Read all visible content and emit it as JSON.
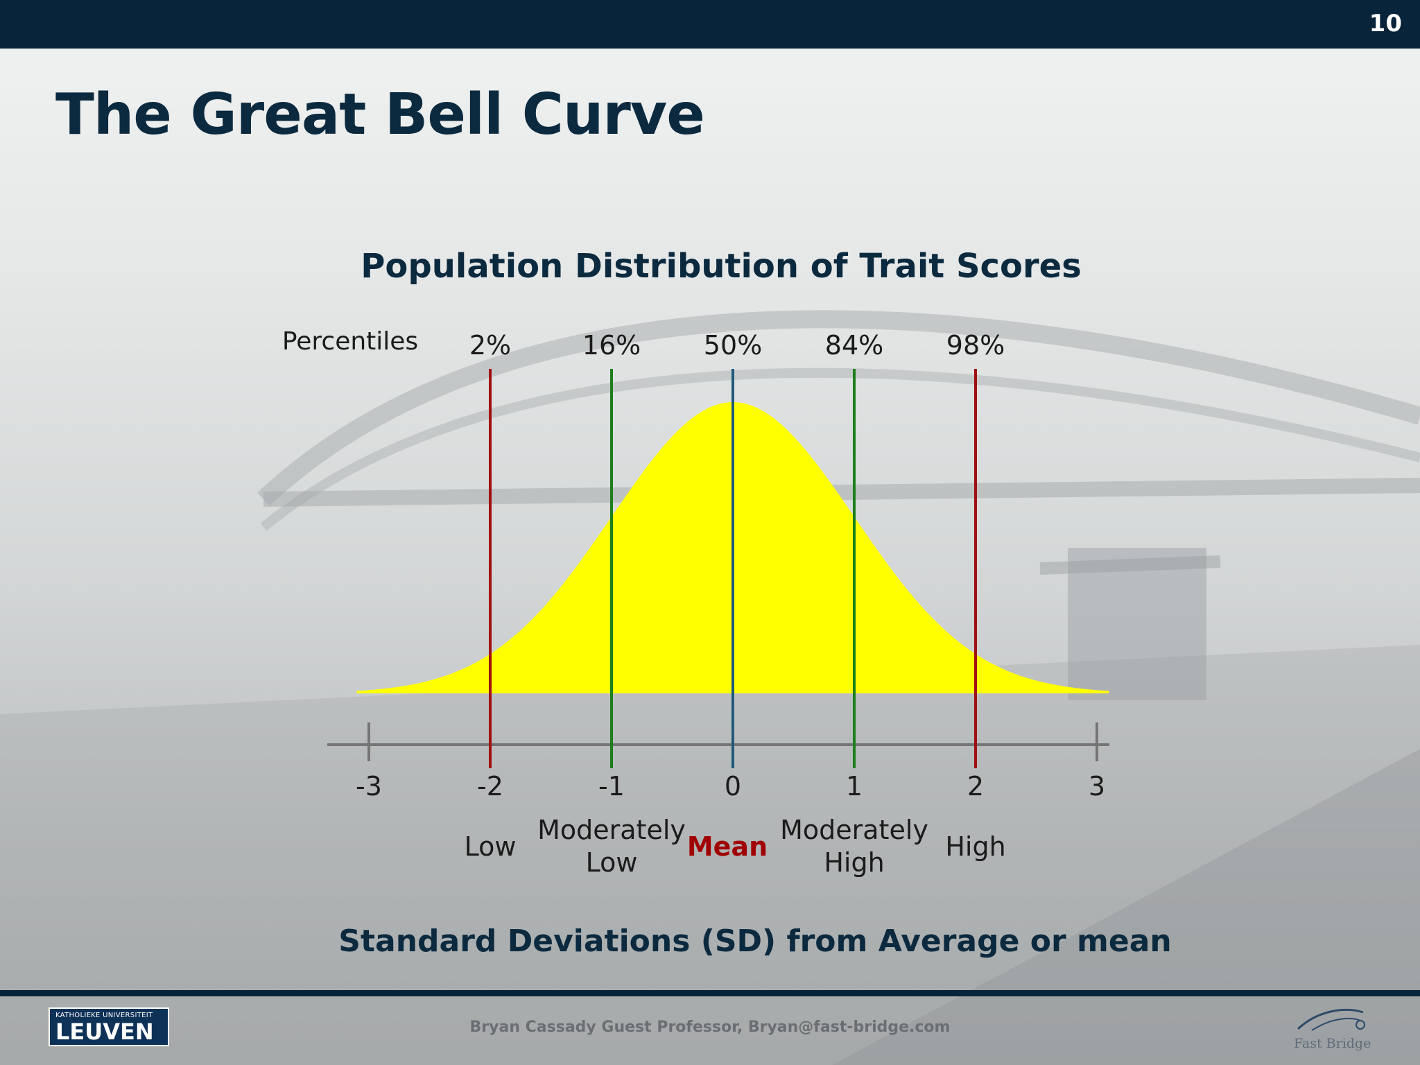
{
  "slide": {
    "number": "10",
    "title": "The Great Bell Curve",
    "footer": "Bryan Cassady Guest Professor, Bryan@fast-bridge.com",
    "logo_left_small": "KATHOLIEKE UNIVERSITEIT",
    "logo_left_big": "LEUVEN",
    "logo_right": "Fast Bridge"
  },
  "colors": {
    "bar": "#07243a",
    "title": "#0b2a3f",
    "curve_fill": "#ffff00",
    "line_dark_red": "#a01010",
    "line_green": "#1b7f1b",
    "line_blue": "#1f5a7a",
    "axis": "#757575",
    "mean_label": "#a00000"
  },
  "chart_data": {
    "type": "area",
    "title": "Population Distribution of Trait Scores",
    "xlabel": "Standard Deviations (SD) from Average or mean",
    "percentile_heading": "Percentiles",
    "xlim": [
      -3.1,
      3.1
    ],
    "ticks": [
      -3,
      -2,
      -1,
      0,
      1,
      2,
      3
    ],
    "tick_labels": [
      "-3",
      "-2",
      "-1",
      "0",
      "1",
      "2",
      "3"
    ],
    "curve": {
      "distribution": "normal",
      "mean": 0,
      "sd": 1
    },
    "markers": [
      {
        "x": -2,
        "percentile": "2%",
        "color": "#a01010"
      },
      {
        "x": -1,
        "percentile": "16%",
        "color": "#1b7f1b"
      },
      {
        "x": 0,
        "percentile": "50%",
        "color": "#1f5a7a"
      },
      {
        "x": 1,
        "percentile": "84%",
        "color": "#1b7f1b"
      },
      {
        "x": 2,
        "percentile": "98%",
        "color": "#a01010"
      }
    ],
    "categories": [
      {
        "x": -2,
        "lines": [
          "Low"
        ],
        "emphasis": false
      },
      {
        "x": -1,
        "lines": [
          "Moderately",
          "Low"
        ],
        "emphasis": false
      },
      {
        "x": 0,
        "lines": [
          "Mean"
        ],
        "emphasis": true
      },
      {
        "x": 1,
        "lines": [
          "Moderately",
          "High"
        ],
        "emphasis": false
      },
      {
        "x": 2,
        "lines": [
          "High"
        ],
        "emphasis": false
      }
    ]
  }
}
